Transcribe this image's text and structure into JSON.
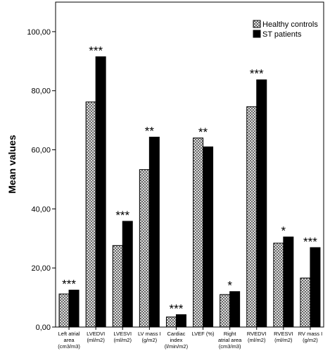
{
  "chart_data": {
    "type": "bar",
    "ylabel": "Mean values",
    "ylim": [
      0,
      110
    ],
    "yticks": [
      "0,00",
      "20,00",
      "40,00",
      "60,00",
      "80,00",
      "100,00"
    ],
    "ytick_values": [
      0,
      20,
      40,
      60,
      80,
      100
    ],
    "categories": [
      [
        "Left atrial",
        "area",
        "(cm3/m3)"
      ],
      [
        "LVEDVI",
        "(ml/m2)"
      ],
      [
        "LVESVI",
        "(ml/m2)"
      ],
      [
        "LV mass I",
        "(g/m2)"
      ],
      [
        "Cardiac",
        "index",
        "(l/min/m2)"
      ],
      [
        "LVEF (%)"
      ],
      [
        "Right",
        "atrial area",
        "(cm3/m3)"
      ],
      [
        "RVEDVI",
        "(ml/m2)"
      ],
      [
        "RVESVI",
        "(ml/m2)"
      ],
      [
        "RV mass I",
        "(g/m2)"
      ]
    ],
    "series": [
      {
        "name": "Healthy controls",
        "pattern": "crosshatch",
        "values": [
          11.2,
          76.2,
          27.6,
          53.3,
          3.4,
          64.0,
          11.0,
          74.6,
          28.4,
          16.6
        ]
      },
      {
        "name": "ST patients",
        "color": "#000000",
        "values": [
          12.5,
          91.5,
          35.8,
          64.3,
          4.2,
          61.0,
          12.0,
          83.7,
          30.5,
          26.9
        ]
      }
    ],
    "annotations": [
      "***",
      "***",
      "***",
      "**",
      "***",
      "**",
      "*",
      "***",
      "*",
      "***"
    ],
    "legend": "top-right",
    "grid": false
  }
}
